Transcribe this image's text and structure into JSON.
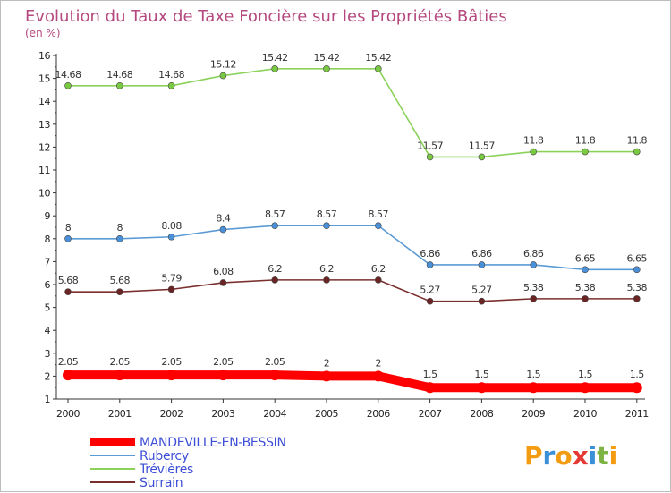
{
  "chart_data": {
    "type": "line",
    "title": "Evolution du Taux de Taxe Foncière sur les Propriétés Bâties",
    "subtitle": "(en %)",
    "xlabel": "",
    "ylabel": "",
    "categories": [
      "2000",
      "2001",
      "2002",
      "2003",
      "2004",
      "2005",
      "2006",
      "2007",
      "2008",
      "2009",
      "2010",
      "2011"
    ],
    "ylim": [
      0.5,
      16
    ],
    "yticks": [
      "1",
      "2",
      "3",
      "4",
      "5",
      "6",
      "7",
      "8",
      "9",
      "10",
      "11",
      "12",
      "13",
      "14",
      "15",
      "16"
    ],
    "grid": false,
    "legend_position": "bottom-left",
    "series": [
      {
        "name": "Trévières",
        "color": "#8bd15a",
        "marker_color": "#7ac943",
        "values": [
          14.68,
          14.68,
          14.68,
          15.12,
          15.42,
          15.42,
          15.42,
          11.57,
          11.57,
          11.8,
          11.8,
          11.8
        ],
        "labels": [
          "14.68",
          "14.68",
          "14.68",
          "15.12",
          "15.42",
          "15.42",
          "15.42",
          "11.57",
          "11.57",
          "11.8",
          "11.8",
          "11.8"
        ]
      },
      {
        "name": "Rubercy",
        "color": "#5b9bd5",
        "marker_color": "#4a90d9",
        "values": [
          8,
          8,
          8.08,
          8.4,
          8.57,
          8.57,
          8.57,
          6.86,
          6.86,
          6.86,
          6.65,
          6.65
        ],
        "labels": [
          "8",
          "8",
          "8.08",
          "8.4",
          "8.57",
          "8.57",
          "8.57",
          "6.86",
          "6.86",
          "6.86",
          "6.65",
          "6.65"
        ]
      },
      {
        "name": "Surrain",
        "color": "#7a2e2e",
        "marker_color": "#6b2424",
        "values": [
          5.68,
          5.68,
          5.79,
          6.08,
          6.2,
          6.2,
          6.2,
          5.27,
          5.27,
          5.38,
          5.38,
          5.38
        ],
        "labels": [
          "5.68",
          "5.68",
          "5.79",
          "6.08",
          "6.2",
          "6.2",
          "6.2",
          "5.27",
          "5.27",
          "5.38",
          "5.38",
          "5.38"
        ]
      },
      {
        "name": "MANDEVILLE-EN-BESSIN",
        "color": "#ff0000",
        "marker_color": "#ff0000",
        "values": [
          2.05,
          2.05,
          2.05,
          2.05,
          2.05,
          2,
          2,
          1.5,
          1.5,
          1.5,
          1.5,
          1.5
        ],
        "labels": [
          "2.05",
          "2.05",
          "2.05",
          "2.05",
          "2.05",
          "2",
          "2",
          "1.5",
          "1.5",
          "1.5",
          "1.5",
          "1.5"
        ]
      }
    ],
    "legend": [
      {
        "name": "MANDEVILLE-EN-BESSIN",
        "color": "#ff0000"
      },
      {
        "name": "Rubercy",
        "color": "#5b9bd5"
      },
      {
        "name": "Trévières",
        "color": "#8bd15a"
      },
      {
        "name": "Surrain",
        "color": "#7a2e2e"
      }
    ]
  },
  "logo": {
    "text": "Proxiti",
    "letters": [
      {
        "ch": "P",
        "color": "#f39c12"
      },
      {
        "ch": "r",
        "color": "#3b8fd6"
      },
      {
        "ch": "o",
        "color": "#f39c12"
      },
      {
        "ch": "x",
        "color": "#e53935"
      },
      {
        "ch": "i",
        "color": "#3b8fd6"
      },
      {
        "ch": "t",
        "color": "#7cb342"
      },
      {
        "ch": "i",
        "color": "#f39c12"
      }
    ]
  }
}
